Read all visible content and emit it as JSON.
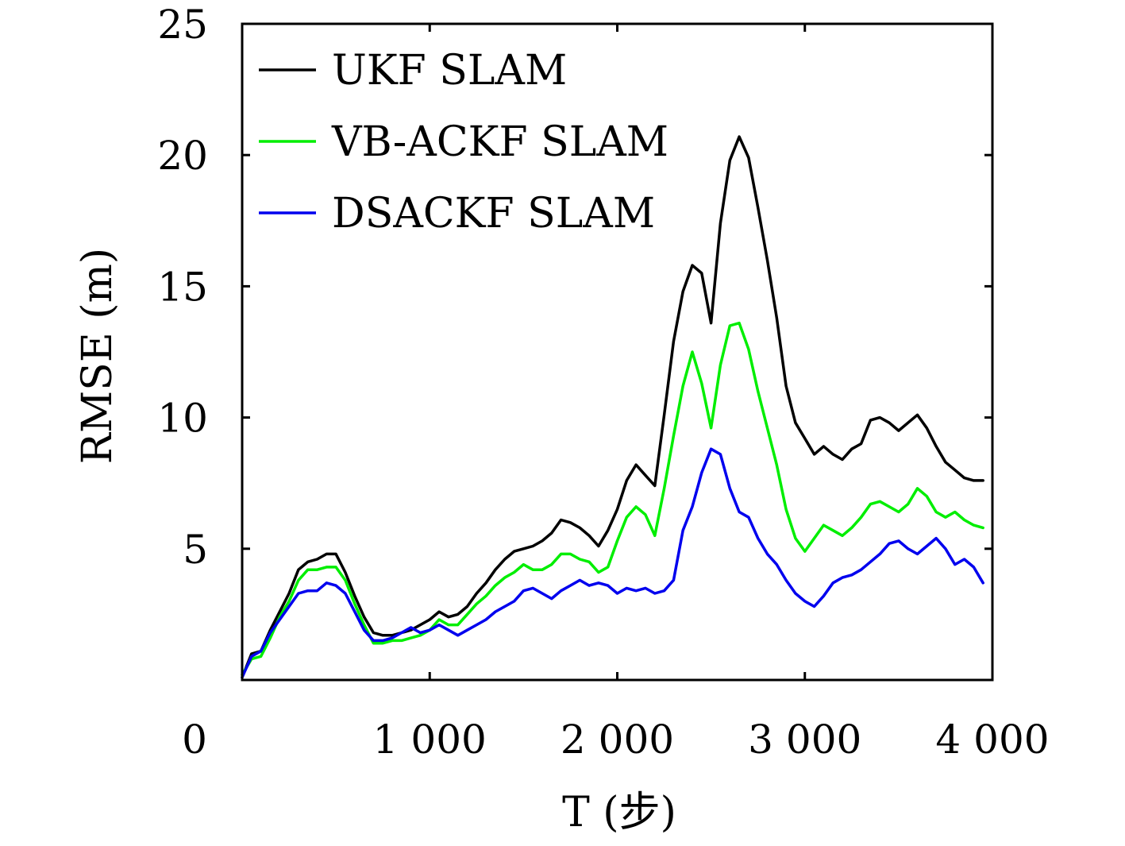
{
  "chart_data": {
    "type": "line",
    "title": "",
    "xlabel": "T (步)",
    "ylabel": "RMSE (m)",
    "xlim": [
      0,
      4000
    ],
    "ylim": [
      0,
      25
    ],
    "xticks": [
      0,
      1000,
      2000,
      3000,
      4000
    ],
    "xtick_labels": [
      "0",
      "1 000",
      "2 000",
      "3 000",
      "4 000"
    ],
    "yticks": [
      5,
      10,
      15,
      20,
      25
    ],
    "ytick_labels": [
      "5",
      "10",
      "15",
      "20",
      "25"
    ],
    "grid": false,
    "legend_position": "top-left",
    "series": [
      {
        "name": "UKF SLAM",
        "color": "#000000",
        "x": [
          0,
          50,
          100,
          150,
          200,
          250,
          300,
          350,
          400,
          450,
          500,
          550,
          600,
          650,
          700,
          750,
          800,
          850,
          900,
          950,
          1000,
          1050,
          1100,
          1150,
          1200,
          1250,
          1300,
          1350,
          1400,
          1450,
          1500,
          1550,
          1600,
          1650,
          1700,
          1750,
          1800,
          1850,
          1900,
          1950,
          2000,
          2050,
          2100,
          2150,
          2200,
          2250,
          2300,
          2350,
          2400,
          2450,
          2500,
          2550,
          2600,
          2650,
          2700,
          2750,
          2800,
          2850,
          2900,
          2950,
          3000,
          3050,
          3100,
          3150,
          3200,
          3250,
          3300,
          3350,
          3400,
          3450,
          3500,
          3550,
          3600,
          3650,
          3700,
          3750,
          3800,
          3850,
          3900,
          3950
        ],
        "values": [
          0.1,
          1.0,
          1.1,
          1.9,
          2.6,
          3.3,
          4.2,
          4.5,
          4.6,
          4.8,
          4.8,
          4.1,
          3.2,
          2.4,
          1.8,
          1.7,
          1.7,
          1.8,
          1.9,
          2.1,
          2.3,
          2.6,
          2.4,
          2.5,
          2.8,
          3.3,
          3.7,
          4.2,
          4.6,
          4.9,
          5.0,
          5.1,
          5.3,
          5.6,
          6.1,
          6.0,
          5.8,
          5.5,
          5.1,
          5.7,
          6.5,
          7.6,
          8.2,
          7.8,
          7.4,
          10.1,
          12.9,
          14.8,
          15.8,
          15.5,
          13.6,
          17.4,
          19.8,
          20.7,
          19.9,
          18.0,
          16.0,
          13.8,
          11.2,
          9.8,
          9.2,
          8.6,
          8.9,
          8.6,
          8.4,
          8.8,
          9.0,
          9.9,
          10.0,
          9.8,
          9.5,
          9.8,
          10.1,
          9.6,
          8.9,
          8.3,
          8.0,
          7.7,
          7.6,
          7.6
        ]
      },
      {
        "name": "VB-ACKF SLAM",
        "color": "#00ee00",
        "x": [
          0,
          50,
          100,
          150,
          200,
          250,
          300,
          350,
          400,
          450,
          500,
          550,
          600,
          650,
          700,
          750,
          800,
          850,
          900,
          950,
          1000,
          1050,
          1100,
          1150,
          1200,
          1250,
          1300,
          1350,
          1400,
          1450,
          1500,
          1550,
          1600,
          1650,
          1700,
          1750,
          1800,
          1850,
          1900,
          1950,
          2000,
          2050,
          2100,
          2150,
          2200,
          2250,
          2300,
          2350,
          2400,
          2450,
          2500,
          2550,
          2600,
          2650,
          2700,
          2750,
          2800,
          2850,
          2900,
          2950,
          3000,
          3050,
          3100,
          3150,
          3200,
          3250,
          3300,
          3350,
          3400,
          3450,
          3500,
          3550,
          3600,
          3650,
          3700,
          3750,
          3800,
          3850,
          3900,
          3950
        ],
        "values": [
          0.2,
          0.8,
          0.9,
          1.6,
          2.4,
          3.0,
          3.8,
          4.2,
          4.2,
          4.3,
          4.3,
          3.8,
          2.9,
          2.1,
          1.4,
          1.4,
          1.5,
          1.5,
          1.6,
          1.7,
          1.9,
          2.3,
          2.1,
          2.1,
          2.5,
          2.9,
          3.2,
          3.6,
          3.9,
          4.1,
          4.4,
          4.2,
          4.2,
          4.4,
          4.8,
          4.8,
          4.6,
          4.5,
          4.1,
          4.3,
          5.3,
          6.2,
          6.6,
          6.3,
          5.5,
          7.3,
          9.3,
          11.2,
          12.5,
          11.3,
          9.6,
          12.0,
          13.5,
          13.6,
          12.6,
          11.0,
          9.6,
          8.2,
          6.5,
          5.4,
          4.9,
          5.4,
          5.9,
          5.7,
          5.5,
          5.8,
          6.2,
          6.7,
          6.8,
          6.6,
          6.4,
          6.7,
          7.3,
          7.0,
          6.4,
          6.2,
          6.4,
          6.1,
          5.9,
          5.8
        ]
      },
      {
        "name": "DSACKF SLAM",
        "color": "#0000ee",
        "x": [
          0,
          50,
          100,
          150,
          200,
          250,
          300,
          350,
          400,
          450,
          500,
          550,
          600,
          650,
          700,
          750,
          800,
          850,
          900,
          950,
          1000,
          1050,
          1100,
          1150,
          1200,
          1250,
          1300,
          1350,
          1400,
          1450,
          1500,
          1550,
          1600,
          1650,
          1700,
          1750,
          1800,
          1850,
          1900,
          1950,
          2000,
          2050,
          2100,
          2150,
          2200,
          2250,
          2300,
          2350,
          2400,
          2450,
          2500,
          2550,
          2600,
          2650,
          2700,
          2750,
          2800,
          2850,
          2900,
          2950,
          3000,
          3050,
          3100,
          3150,
          3200,
          3250,
          3300,
          3350,
          3400,
          3450,
          3500,
          3550,
          3600,
          3650,
          3700,
          3750,
          3800,
          3850,
          3900,
          3950
        ],
        "values": [
          0.1,
          0.9,
          1.1,
          1.8,
          2.3,
          2.8,
          3.3,
          3.4,
          3.4,
          3.7,
          3.6,
          3.3,
          2.6,
          1.9,
          1.5,
          1.5,
          1.6,
          1.8,
          2.0,
          1.8,
          1.9,
          2.1,
          1.9,
          1.7,
          1.9,
          2.1,
          2.3,
          2.6,
          2.8,
          3.0,
          3.4,
          3.5,
          3.3,
          3.1,
          3.4,
          3.6,
          3.8,
          3.6,
          3.7,
          3.6,
          3.3,
          3.5,
          3.4,
          3.5,
          3.3,
          3.4,
          3.8,
          5.7,
          6.6,
          7.9,
          8.8,
          8.6,
          7.3,
          6.4,
          6.2,
          5.4,
          4.8,
          4.4,
          3.8,
          3.3,
          3.0,
          2.8,
          3.2,
          3.7,
          3.9,
          4.0,
          4.2,
          4.5,
          4.8,
          5.2,
          5.3,
          5.0,
          4.8,
          5.1,
          5.4,
          5.0,
          4.4,
          4.6,
          4.3,
          3.7
        ]
      }
    ]
  }
}
